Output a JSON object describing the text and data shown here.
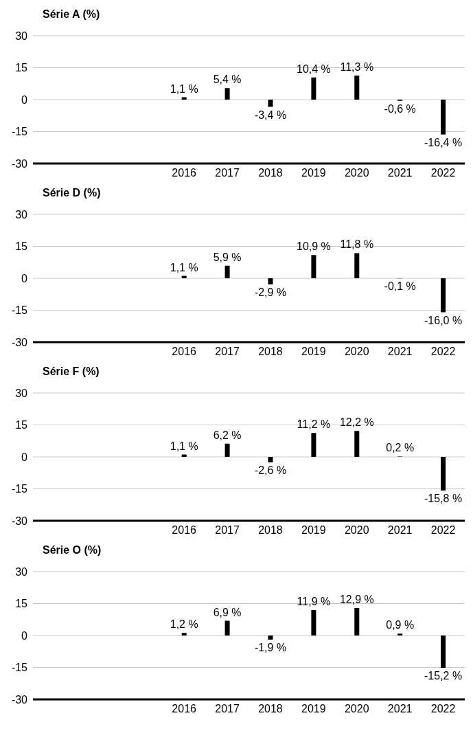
{
  "chart_data": [
    {
      "type": "bar",
      "title": "Série A (%)",
      "categories": [
        null,
        null,
        null,
        "2016",
        "2017",
        "2018",
        "2019",
        "2020",
        "2021",
        "2022"
      ],
      "values": [
        null,
        null,
        null,
        1.1,
        5.4,
        -3.4,
        10.4,
        11.3,
        -0.6,
        -16.4
      ],
      "value_labels": [
        null,
        null,
        null,
        "1,1 %",
        "5,4 %",
        "-3,4 %",
        "10,4 %",
        "11,3 %",
        "-0,6 %",
        "-16,4 %"
      ],
      "color": "#000000",
      "ylim": [
        -30,
        30
      ],
      "yticks": [
        -30,
        -15,
        0,
        15,
        30
      ],
      "grid": "y",
      "legend": false
    },
    {
      "type": "bar",
      "title": "Série D (%)",
      "categories": [
        null,
        null,
        null,
        "2016",
        "2017",
        "2018",
        "2019",
        "2020",
        "2021",
        "2022"
      ],
      "values": [
        null,
        null,
        null,
        1.1,
        5.9,
        -2.9,
        10.9,
        11.8,
        -0.1,
        -16.0
      ],
      "value_labels": [
        null,
        null,
        null,
        "1,1 %",
        "5,9 %",
        "-2,9 %",
        "10,9 %",
        "11,8 %",
        "-0,1 %",
        "-16,0 %"
      ],
      "color": "#000000",
      "ylim": [
        -30,
        30
      ],
      "yticks": [
        -30,
        -15,
        0,
        15,
        30
      ],
      "grid": "y",
      "legend": false
    },
    {
      "type": "bar",
      "title": "Série F (%)",
      "categories": [
        null,
        null,
        null,
        "2016",
        "2017",
        "2018",
        "2019",
        "2020",
        "2021",
        "2022"
      ],
      "values": [
        null,
        null,
        null,
        1.1,
        6.2,
        -2.6,
        11.2,
        12.2,
        0.2,
        -15.8
      ],
      "value_labels": [
        null,
        null,
        null,
        "1,1 %",
        "6,2 %",
        "-2,6 %",
        "11,2 %",
        "12,2 %",
        "0,2 %",
        "-15,8 %"
      ],
      "color": "#000000",
      "ylim": [
        -30,
        30
      ],
      "yticks": [
        -30,
        -15,
        0,
        15,
        30
      ],
      "grid": "y",
      "legend": false
    },
    {
      "type": "bar",
      "title": "Série O (%)",
      "categories": [
        null,
        null,
        null,
        "2016",
        "2017",
        "2018",
        "2019",
        "2020",
        "2021",
        "2022"
      ],
      "values": [
        null,
        null,
        null,
        1.2,
        6.9,
        -1.9,
        11.9,
        12.9,
        0.9,
        -15.2
      ],
      "value_labels": [
        null,
        null,
        null,
        "1,2 %",
        "6,9 %",
        "-1,9 %",
        "11,9 %",
        "12,9 %",
        "0,9 %",
        "-15,2 %"
      ],
      "color": "#000000",
      "ylim": [
        -30,
        30
      ],
      "yticks": [
        -30,
        -15,
        0,
        15,
        30
      ],
      "grid": "y",
      "legend": false
    }
  ]
}
